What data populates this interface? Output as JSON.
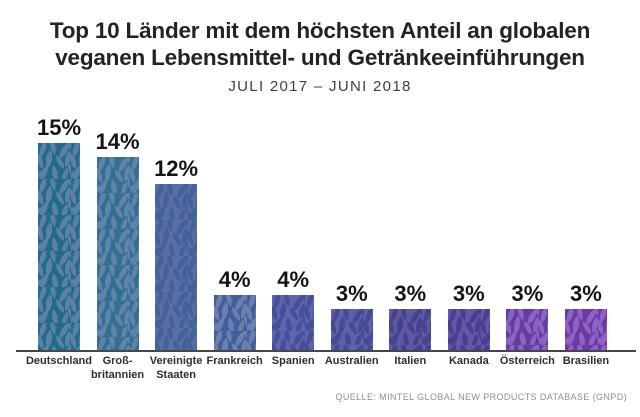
{
  "header": {
    "title_lines": [
      "Top 10 Länder mit dem höchsten Anteil an globalen",
      "veganen Lebensmittel- und Getränkeeinführungen"
    ],
    "subtitle": "JULI 2017 – JUNI 2018"
  },
  "footer": {
    "source": "QUELLE: MINTEL GLOBAL NEW PRODUCTS DATABASE (GNPD)"
  },
  "chart_data": {
    "type": "bar",
    "title": "Top 10 Länder mit dem höchsten Anteil an globalen veganen Lebensmittel- und Getränkeeinführungen",
    "subtitle": "JULI 2017 – JUNI 2018",
    "source": "QUELLE: MINTEL GLOBAL NEW PRODUCTS DATABASE (GNPD)",
    "unit": "%",
    "xlabel": "",
    "ylabel": "",
    "ylim": [
      0,
      15
    ],
    "grid": false,
    "legend": false,
    "categories": [
      "Deutschland",
      "Großbritannien",
      "Vereinigte Staaten",
      "Frankreich",
      "Spanien",
      "Australien",
      "Italien",
      "Kanada",
      "Österreich",
      "Brasilien"
    ],
    "label_lines": [
      [
        "Deutschland"
      ],
      [
        "Groß-",
        "britannien"
      ],
      [
        "Vereinigte",
        "Staaten"
      ],
      [
        "Frankreich"
      ],
      [
        "Spanien"
      ],
      [
        "Australien"
      ],
      [
        "Italien"
      ],
      [
        "Kanada"
      ],
      [
        "Österreich"
      ],
      [
        "Brasilien"
      ]
    ],
    "values": [
      15,
      14,
      12,
      4,
      4,
      3,
      3,
      3,
      3,
      3
    ],
    "value_labels": [
      "15%",
      "14%",
      "12%",
      "4%",
      "4%",
      "3%",
      "3%",
      "3%",
      "3%",
      "3%"
    ],
    "colors": [
      {
        "base": "#216c8c",
        "leaf": "#5d80a5"
      },
      {
        "base": "#2f7093",
        "leaf": "#6183a9"
      },
      {
        "base": "#5c6da5",
        "leaf": "#40639a"
      },
      {
        "base": "#40609b",
        "leaf": "#6c7fae"
      },
      {
        "base": "#5e66ab",
        "leaf": "#454f9c"
      },
      {
        "base": "#5e61a7",
        "leaf": "#464a96"
      },
      {
        "base": "#5f5aa0",
        "leaf": "#474290"
      },
      {
        "base": "#6656a7",
        "leaf": "#4c3d92"
      },
      {
        "base": "#653ca0",
        "leaf": "#8a63c3"
      },
      {
        "base": "#6c3aa3",
        "leaf": "#8f62c6"
      }
    ]
  }
}
